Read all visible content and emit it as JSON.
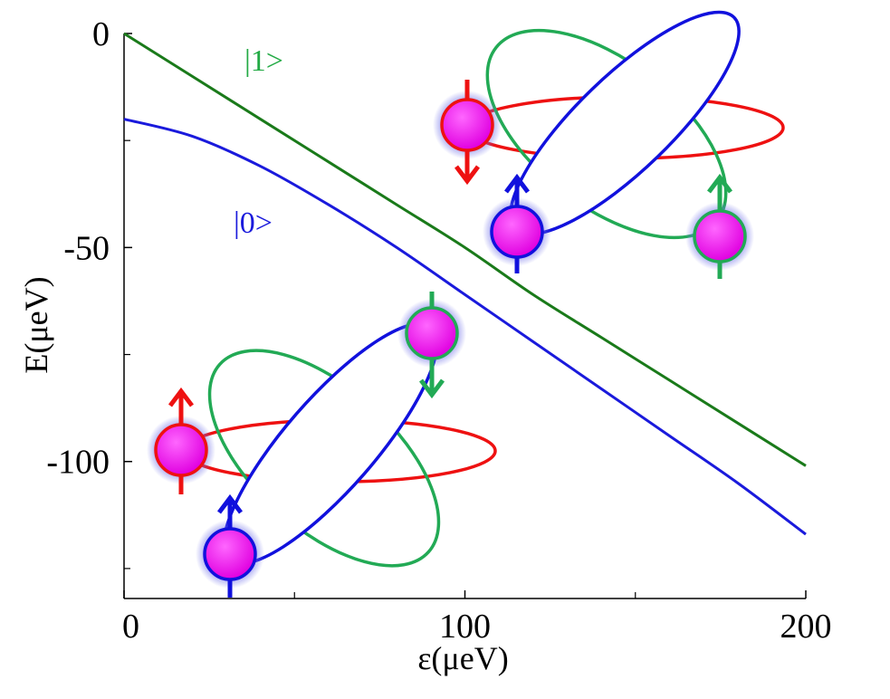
{
  "chart_data": {
    "type": "line",
    "xlabel": "ε(μeV)",
    "ylabel": "E(μeV)",
    "xlim": [
      0,
      200
    ],
    "ylim": [
      -132,
      0
    ],
    "x_ticks": [
      0,
      100,
      200
    ],
    "y_ticks": [
      0,
      -50,
      -100
    ],
    "x_minor_ticks": [
      50,
      150
    ],
    "y_minor_ticks": [
      -25,
      -75,
      -125
    ],
    "grid": false,
    "series": [
      {
        "name": "|1>",
        "color": "#1a7a1a",
        "x": [
          0,
          20,
          40,
          60,
          80,
          100,
          120,
          140,
          160,
          180,
          200
        ],
        "y": [
          0,
          -10,
          -20,
          -30,
          -40,
          -50,
          -61,
          -71,
          -81,
          -91,
          -101
        ]
      },
      {
        "name": "|0>",
        "color": "#1a1adc",
        "x": [
          0,
          20,
          40,
          60,
          80,
          100,
          120,
          140,
          160,
          180,
          200
        ],
        "y": [
          -20,
          -24,
          -31,
          -40,
          -50,
          -61,
          -72,
          -83,
          -94,
          -105,
          -117
        ]
      }
    ],
    "annotations": [
      {
        "text": "|1>",
        "color": "#22aa44"
      },
      {
        "text": "|0>",
        "color": "#1a1adc"
      }
    ]
  },
  "colors": {
    "spin_red": "#ee1111",
    "spin_blue": "#1111dd",
    "spin_green": "#22aa55",
    "particle_fill": "#ee00ee",
    "glow": "#6a6ae8"
  }
}
